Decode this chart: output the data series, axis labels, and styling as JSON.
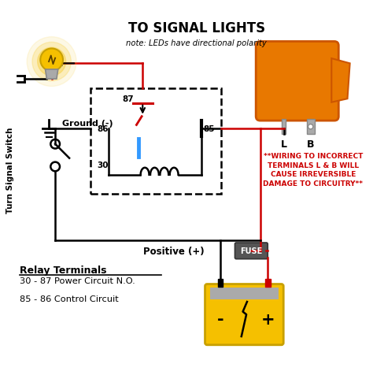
{
  "title": "TO SIGNAL LIGHTS",
  "subtitle": "note: LEDs have directional polarity",
  "bg_color": "#ffffff",
  "red_color": "#cc0000",
  "black_color": "#000000",
  "blue_color": "#3399ff",
  "orange_color": "#e87800",
  "orange_dark": "#cc5500",
  "yellow_color": "#f5c000",
  "yellow_dark": "#e0a800",
  "gray_color": "#999999",
  "dark_gray": "#444444",
  "relay_label_title": "Relay Terminals",
  "relay_label_1": "30 - 87 Power Circuit N.O.",
  "relay_label_2": "85 - 86 Control Circuit",
  "warning_text": "**WIRING TO INCORRECT\nTERMINALS L & B WILL\nCAUSE IRREVERSIBLE\nDAMAGE TO CIRCUITRY**",
  "positive_label": "Positive (+)",
  "ground_label": "Ground (-)",
  "switch_label": "Turn Signal Switch",
  "fuse_label": "FUSE",
  "terminal_L": "L",
  "terminal_B": "B"
}
